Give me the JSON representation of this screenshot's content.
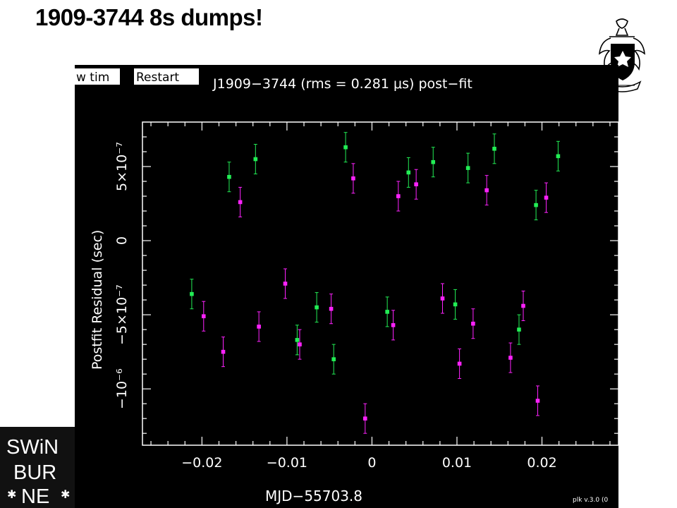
{
  "slide": {
    "title": "1909-3744 8s dumps!"
  },
  "logo": {
    "lines": [
      "SWiN",
      "BUR",
      "NE"
    ],
    "icon": "swinburne-logo"
  },
  "crest": {
    "icon": "university-crest-icon"
  },
  "plk_window": {
    "buttons": [
      {
        "label": "w tim"
      },
      {
        "label": "Restart"
      }
    ],
    "version": "plk v.3.0 (0"
  },
  "colors": {
    "background": "#000000",
    "frame": "#ffffff",
    "series_1": "#ff22ff",
    "series_2": "#22ee55",
    "series_3": "#22aaee"
  },
  "chart_data": {
    "type": "scatter",
    "title": "J1909−3744 (rms = 0.281 μs) post−fit",
    "xlabel": "MJD−55703.8",
    "ylabel": "Postfit Residual (sec)",
    "xlim": [
      -0.027,
      0.029
    ],
    "ylim": [
      -1.38e-06,
      8e-07
    ],
    "x_ticks": [
      -0.02,
      -0.01,
      0,
      0.01,
      0.02
    ],
    "x_tick_labels": [
      "−0.02",
      "−0.01",
      "0",
      "0.01",
      "0.02"
    ],
    "y_ticks": [
      -1e-06,
      -5e-07,
      0,
      5e-07
    ],
    "y_tick_labels": [
      "−10⁻⁶",
      "−5×10⁻⁷",
      "0",
      "5×10⁻⁷"
    ],
    "x_range_of_points": [
      -0.0222,
      0.0222
    ],
    "error_bar_approx": 1e-07,
    "grid": false,
    "series": [
      {
        "color": "#ff22ff",
        "points": [
          [
            -0.0175,
            -7.5e-07
          ],
          [
            -0.0085,
            -7e-07
          ],
          [
            -0.0008,
            -1.2e-06
          ],
          [
            0.0103,
            -8.3e-07
          ],
          [
            0.0195,
            -1.08e-06
          ],
          [
            0.0163,
            -7.9e-07
          ],
          [
            -0.0133,
            -5.8e-07
          ],
          [
            -0.0048,
            -4.6e-07
          ],
          [
            0.0025,
            -5.7e-07
          ],
          [
            0.0083,
            -3.9e-07
          ],
          [
            0.0052,
            3.8e-07
          ],
          [
            -0.0022,
            4.2e-07
          ],
          [
            0.0135,
            3.4e-07
          ],
          [
            -0.0155,
            2.6e-07
          ],
          [
            0.0205,
            2.9e-07
          ],
          [
            -0.0198,
            -5.1e-07
          ],
          [
            0.0119,
            -5.6e-07
          ],
          [
            0.0178,
            -4.4e-07
          ],
          [
            -0.0102,
            -2.9e-07
          ],
          [
            0.0031,
            3e-07
          ]
        ]
      },
      {
        "color": "#22ee55",
        "points": [
          [
            -0.0045,
            -8e-07
          ],
          [
            -0.0088,
            -6.7e-07
          ],
          [
            0.0144,
            6.2e-07
          ],
          [
            0.0219,
            5.7e-07
          ],
          [
            -0.0137,
            5.5e-07
          ],
          [
            0.0072,
            5.3e-07
          ],
          [
            0.0018,
            -4.8e-07
          ],
          [
            -0.0065,
            -4.5e-07
          ],
          [
            0.0173,
            -6e-07
          ],
          [
            -0.0212,
            -3.6e-07
          ],
          [
            0.0098,
            -4.3e-07
          ],
          [
            -0.0168,
            4.3e-07
          ],
          [
            0.0043,
            4.6e-07
          ],
          [
            -0.0031,
            6.3e-07
          ],
          [
            0.0193,
            2.4e-07
          ],
          [
            0.0113,
            4.9e-07
          ]
        ]
      }
    ]
  }
}
